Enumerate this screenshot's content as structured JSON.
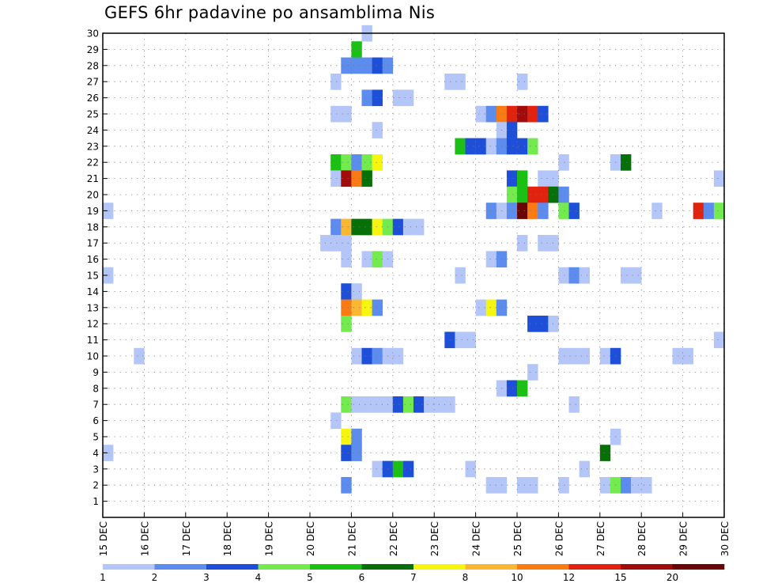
{
  "chart_data": {
    "type": "heatmap",
    "title": "GEFS 6hr padavine po ansamblima Nis",
    "x_tick_labels": [
      "15 DEC",
      "16 DEC",
      "17 DEC",
      "18 DEC",
      "19 DEC",
      "20 DEC",
      "21 DEC",
      "22 DEC",
      "23 DEC",
      "24 DEC",
      "25 DEC",
      "26 DEC",
      "27 DEC",
      "28 DEC",
      "29 DEC",
      "30 DEC"
    ],
    "y_tick_labels": [
      "1",
      "2",
      "3",
      "4",
      "5",
      "6",
      "7",
      "8",
      "9",
      "10",
      "11",
      "12",
      "13",
      "14",
      "15",
      "16",
      "17",
      "18",
      "19",
      "20",
      "21",
      "22",
      "23",
      "24",
      "25",
      "26",
      "27",
      "28",
      "29",
      "30"
    ],
    "xlim_days": [
      15,
      30
    ],
    "ylim_members": [
      0,
      30
    ],
    "step_hours": 6,
    "grid": "dotted",
    "color_levels": [
      "1",
      "2",
      "3",
      "4",
      "5",
      "6",
      "7",
      "8",
      "10",
      "12",
      "15",
      "20"
    ],
    "colors": [
      "#b3c6f7",
      "#5d8cef",
      "#1e4fd8",
      "#73ea4e",
      "#1cbf14",
      "#087008",
      "#f5f510",
      "#fbb632",
      "#fa7a14",
      "#e0220f",
      "#a00c0c",
      "#6b0404"
    ],
    "cells": [
      [
        30,
        21.375,
        1
      ],
      [
        29,
        21.125,
        5
      ],
      [
        28,
        20.875,
        2
      ],
      [
        28,
        21.125,
        2
      ],
      [
        28,
        21.375,
        2
      ],
      [
        28,
        21.625,
        3
      ],
      [
        28,
        21.875,
        2
      ],
      [
        27,
        20.625,
        1
      ],
      [
        27,
        23.375,
        1
      ],
      [
        27,
        23.625,
        1
      ],
      [
        27,
        25.125,
        1
      ],
      [
        26,
        21.375,
        2
      ],
      [
        26,
        21.625,
        3
      ],
      [
        26,
        22.125,
        1
      ],
      [
        26,
        22.375,
        1
      ],
      [
        25,
        20.625,
        1
      ],
      [
        25,
        20.875,
        1
      ],
      [
        25,
        24.125,
        1
      ],
      [
        25,
        24.375,
        2
      ],
      [
        25,
        24.625,
        9
      ],
      [
        25,
        24.875,
        10
      ],
      [
        25,
        25.125,
        11
      ],
      [
        25,
        25.375,
        10
      ],
      [
        25,
        25.625,
        3
      ],
      [
        24,
        21.625,
        1
      ],
      [
        24,
        24.625,
        1
      ],
      [
        24,
        24.875,
        3
      ],
      [
        23,
        23.625,
        5
      ],
      [
        23,
        23.875,
        3
      ],
      [
        23,
        24.125,
        3
      ],
      [
        23,
        24.375,
        1
      ],
      [
        23,
        24.625,
        2
      ],
      [
        23,
        24.875,
        3
      ],
      [
        23,
        25.125,
        3
      ],
      [
        23,
        25.375,
        4
      ],
      [
        22,
        20.625,
        5
      ],
      [
        22,
        20.875,
        4
      ],
      [
        22,
        21.125,
        2
      ],
      [
        22,
        21.375,
        4
      ],
      [
        22,
        21.625,
        7
      ],
      [
        22,
        26.125,
        1
      ],
      [
        22,
        27.375,
        1
      ],
      [
        22,
        27.625,
        6
      ],
      [
        21,
        20.625,
        1
      ],
      [
        21,
        20.875,
        11
      ],
      [
        21,
        21.125,
        9
      ],
      [
        21,
        21.375,
        6
      ],
      [
        21,
        24.875,
        3
      ],
      [
        21,
        25.125,
        5
      ],
      [
        21,
        25.625,
        1
      ],
      [
        21,
        25.875,
        1
      ],
      [
        21,
        29.875,
        1
      ],
      [
        20,
        24.875,
        4
      ],
      [
        20,
        25.125,
        5
      ],
      [
        20,
        25.375,
        10
      ],
      [
        20,
        25.625,
        10
      ],
      [
        20,
        25.875,
        6
      ],
      [
        20,
        26.125,
        2
      ],
      [
        19,
        15.125,
        1
      ],
      [
        19,
        24.375,
        2
      ],
      [
        19,
        24.625,
        1
      ],
      [
        19,
        24.875,
        2
      ],
      [
        19,
        25.125,
        12
      ],
      [
        19,
        25.375,
        9
      ],
      [
        19,
        25.625,
        2
      ],
      [
        19,
        26.125,
        4
      ],
      [
        19,
        26.375,
        3
      ],
      [
        19,
        28.375,
        1
      ],
      [
        19,
        29.375,
        10
      ],
      [
        19,
        29.625,
        2
      ],
      [
        19,
        29.875,
        4
      ],
      [
        18,
        20.625,
        2
      ],
      [
        18,
        20.875,
        8
      ],
      [
        18,
        21.125,
        6
      ],
      [
        18,
        21.375,
        6
      ],
      [
        18,
        21.625,
        7
      ],
      [
        18,
        21.875,
        4
      ],
      [
        18,
        22.125,
        3
      ],
      [
        18,
        22.375,
        1
      ],
      [
        18,
        22.625,
        1
      ],
      [
        17,
        20.375,
        1
      ],
      [
        17,
        20.625,
        1
      ],
      [
        17,
        20.875,
        1
      ],
      [
        17,
        25.125,
        1
      ],
      [
        17,
        25.625,
        1
      ],
      [
        17,
        25.875,
        1
      ],
      [
        16,
        20.875,
        1
      ],
      [
        16,
        21.375,
        1
      ],
      [
        16,
        21.625,
        4
      ],
      [
        16,
        21.875,
        1
      ],
      [
        16,
        24.375,
        1
      ],
      [
        16,
        24.625,
        2
      ],
      [
        15,
        15.125,
        1
      ],
      [
        15,
        23.625,
        1
      ],
      [
        15,
        26.125,
        1
      ],
      [
        15,
        26.375,
        2
      ],
      [
        15,
        26.625,
        1
      ],
      [
        15,
        27.625,
        1
      ],
      [
        15,
        27.875,
        1
      ],
      [
        14,
        20.875,
        3
      ],
      [
        14,
        21.125,
        1
      ],
      [
        13,
        20.875,
        9
      ],
      [
        13,
        21.125,
        8
      ],
      [
        13,
        21.375,
        7
      ],
      [
        13,
        21.625,
        2
      ],
      [
        13,
        24.125,
        1
      ],
      [
        13,
        24.375,
        7
      ],
      [
        13,
        24.625,
        2
      ],
      [
        12,
        20.875,
        4
      ],
      [
        12,
        25.375,
        3
      ],
      [
        12,
        25.625,
        3
      ],
      [
        12,
        25.875,
        1
      ],
      [
        11,
        23.375,
        3
      ],
      [
        11,
        23.625,
        1
      ],
      [
        11,
        23.875,
        1
      ],
      [
        11,
        29.875,
        1
      ],
      [
        10,
        15.875,
        1
      ],
      [
        10,
        21.125,
        1
      ],
      [
        10,
        21.375,
        3
      ],
      [
        10,
        21.625,
        2
      ],
      [
        10,
        21.875,
        1
      ],
      [
        10,
        22.125,
        1
      ],
      [
        10,
        26.125,
        1
      ],
      [
        10,
        26.375,
        1
      ],
      [
        10,
        26.625,
        1
      ],
      [
        10,
        27.125,
        1
      ],
      [
        10,
        27.375,
        3
      ],
      [
        10,
        28.875,
        1
      ],
      [
        10,
        29.125,
        1
      ],
      [
        9,
        25.375,
        1
      ],
      [
        8,
        24.625,
        1
      ],
      [
        8,
        24.875,
        3
      ],
      [
        8,
        25.125,
        5
      ],
      [
        7,
        20.875,
        4
      ],
      [
        7,
        21.125,
        1
      ],
      [
        7,
        21.375,
        1
      ],
      [
        7,
        21.625,
        1
      ],
      [
        7,
        21.875,
        1
      ],
      [
        7,
        22.125,
        3
      ],
      [
        7,
        22.375,
        4
      ],
      [
        7,
        22.625,
        3
      ],
      [
        7,
        22.875,
        1
      ],
      [
        7,
        23.125,
        1
      ],
      [
        7,
        23.375,
        1
      ],
      [
        7,
        26.375,
        1
      ],
      [
        6,
        20.625,
        1
      ],
      [
        5,
        20.875,
        7
      ],
      [
        5,
        21.125,
        2
      ],
      [
        5,
        27.375,
        1
      ],
      [
        4,
        15.125,
        1
      ],
      [
        4,
        20.875,
        3
      ],
      [
        4,
        21.125,
        2
      ],
      [
        4,
        27.125,
        6
      ],
      [
        3,
        21.625,
        1
      ],
      [
        3,
        21.875,
        3
      ],
      [
        3,
        22.125,
        5
      ],
      [
        3,
        22.375,
        3
      ],
      [
        3,
        23.875,
        1
      ],
      [
        3,
        26.625,
        1
      ],
      [
        2,
        20.875,
        2
      ],
      [
        2,
        24.375,
        1
      ],
      [
        2,
        24.625,
        1
      ],
      [
        2,
        25.125,
        1
      ],
      [
        2,
        25.375,
        1
      ],
      [
        2,
        26.125,
        1
      ],
      [
        2,
        27.125,
        1
      ],
      [
        2,
        27.375,
        4
      ],
      [
        2,
        27.625,
        2
      ],
      [
        2,
        27.875,
        1
      ],
      [
        2,
        28.125,
        1
      ]
    ]
  }
}
